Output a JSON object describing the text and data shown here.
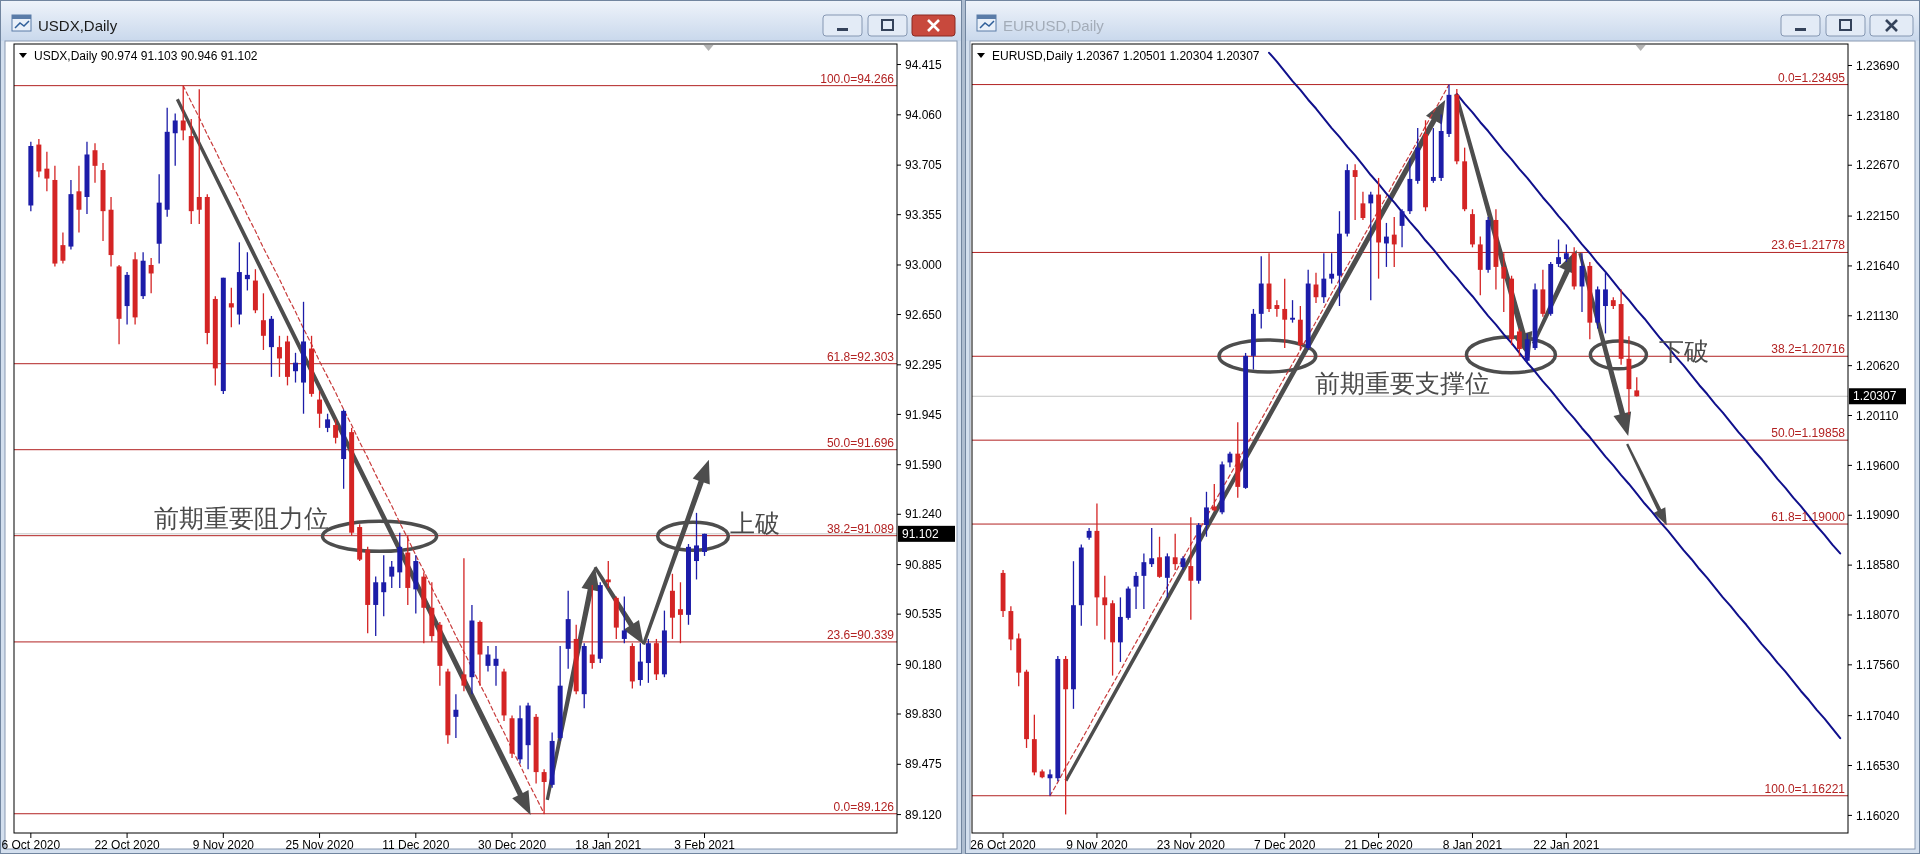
{
  "chart_data": [
    {
      "type": "candlestick",
      "title": "USDX,Daily",
      "subtitle": "USDX,Daily 90.974 91.103 90.946 91.102",
      "categories": [
        "6 Oct 2020",
        null,
        null,
        null,
        null,
        null,
        null,
        null,
        null,
        null,
        null,
        null,
        "22 Oct 2020",
        null,
        null,
        null,
        null,
        null,
        null,
        null,
        null,
        null,
        null,
        null,
        "9 Nov 2020",
        null,
        null,
        null,
        null,
        null,
        null,
        null,
        null,
        null,
        null,
        null,
        "25 Nov 2020",
        null,
        null,
        null,
        null,
        null,
        null,
        null,
        null,
        null,
        null,
        null,
        "11 Dec 2020",
        null,
        null,
        null,
        null,
        null,
        null,
        null,
        null,
        null,
        null,
        null,
        "30 Dec 2020",
        null,
        null,
        null,
        null,
        null,
        null,
        null,
        null,
        null,
        null,
        null,
        "18 Jan 2021",
        null,
        null,
        null,
        null,
        null,
        null,
        null,
        null,
        null,
        null,
        null,
        "3 Feb 2021",
        null,
        null,
        null,
        null,
        null,
        null,
        null,
        null,
        null,
        null,
        null,
        null,
        null,
        null,
        null,
        null,
        null,
        null,
        null,
        null,
        null,
        null,
        null
      ],
      "ohlc": [
        [
          93.42,
          93.87,
          93.38,
          93.84
        ],
        [
          93.85,
          93.89,
          93.62,
          93.66
        ],
        [
          93.68,
          93.8,
          93.52,
          93.61
        ],
        [
          93.6,
          93.7,
          92.99,
          93.01
        ],
        [
          93.14,
          93.23,
          93.01,
          93.03
        ],
        [
          93.13,
          93.6,
          93.11,
          93.5
        ],
        [
          93.52,
          93.7,
          93.23,
          93.39
        ],
        [
          93.48,
          93.87,
          93.36,
          93.78
        ],
        [
          93.81,
          93.86,
          93.58,
          93.7
        ],
        [
          93.67,
          93.72,
          93.17,
          93.38
        ],
        [
          93.39,
          93.48,
          92.99,
          93.07
        ],
        [
          92.99,
          93.0,
          92.44,
          92.62
        ],
        [
          92.71,
          92.95,
          92.58,
          92.93
        ],
        [
          93.04,
          93.09,
          92.58,
          92.63
        ],
        [
          92.78,
          93.09,
          92.76,
          93.03
        ],
        [
          93.0,
          93.05,
          92.8,
          92.94
        ],
        [
          93.15,
          93.64,
          93.01,
          93.44
        ],
        [
          93.39,
          94.11,
          93.34,
          93.94
        ],
        [
          93.93,
          94.07,
          93.7,
          94.02
        ],
        [
          94.02,
          94.266,
          93.88,
          93.95
        ],
        [
          93.91,
          94.03,
          93.29,
          93.38
        ],
        [
          93.48,
          94.24,
          93.29,
          93.39
        ],
        [
          93.48,
          93.5,
          92.44,
          92.52
        ],
        [
          92.76,
          92.78,
          92.15,
          92.27
        ],
        [
          92.11,
          92.91,
          92.09,
          92.91
        ],
        [
          92.73,
          92.84,
          92.56,
          92.7
        ],
        [
          92.65,
          93.16,
          92.58,
          92.95
        ],
        [
          92.9,
          93.09,
          92.82,
          92.93
        ],
        [
          92.89,
          92.97,
          92.66,
          92.68
        ],
        [
          92.61,
          92.8,
          92.4,
          92.5
        ],
        [
          92.42,
          92.64,
          92.21,
          92.62
        ],
        [
          92.42,
          92.5,
          92.21,
          92.34
        ],
        [
          92.46,
          92.5,
          92.15,
          92.21
        ],
        [
          92.25,
          92.38,
          92.17,
          92.31
        ],
        [
          92.17,
          92.74,
          91.95,
          92.46
        ],
        [
          92.41,
          92.5,
          92.07,
          92.09
        ],
        [
          92.05,
          92.11,
          91.85,
          91.95
        ],
        [
          91.85,
          91.95,
          91.82,
          91.91
        ],
        [
          91.87,
          91.91,
          91.74,
          91.78
        ],
        [
          91.63,
          91.98,
          91.42,
          91.97
        ],
        [
          91.82,
          91.85,
          91.09,
          91.11
        ],
        [
          91.15,
          91.17,
          90.91,
          90.92
        ],
        [
          90.99,
          91.01,
          90.4,
          90.6
        ],
        [
          90.6,
          90.8,
          90.38,
          90.76
        ],
        [
          90.69,
          90.95,
          90.52,
          90.76
        ],
        [
          90.8,
          90.91,
          90.72,
          90.87
        ],
        [
          90.83,
          91.11,
          90.72,
          91.01
        ],
        [
          90.97,
          91.09,
          90.6,
          90.72
        ],
        [
          90.71,
          90.95,
          90.54,
          90.91
        ],
        [
          90.8,
          90.83,
          90.33,
          90.58
        ],
        [
          90.58,
          90.76,
          90.34,
          90.38
        ],
        [
          90.46,
          90.48,
          90.03,
          90.17
        ],
        [
          90.13,
          90.15,
          89.62,
          89.68
        ],
        [
          89.81,
          89.97,
          89.66,
          89.86
        ],
        [
          90.11,
          90.93,
          89.99,
          90.03
        ],
        [
          90.09,
          90.6,
          89.97,
          90.49
        ],
        [
          90.48,
          90.49,
          90.03,
          90.25
        ],
        [
          90.17,
          90.31,
          90.13,
          90.25
        ],
        [
          90.17,
          90.31,
          90.03,
          90.22
        ],
        [
          90.13,
          90.15,
          89.78,
          89.82
        ],
        [
          89.8,
          89.82,
          89.52,
          89.55
        ],
        [
          89.51,
          89.89,
          89.48,
          89.8
        ],
        [
          89.61,
          89.91,
          89.44,
          89.89
        ],
        [
          89.81,
          89.83,
          89.34,
          89.42
        ],
        [
          89.42,
          89.44,
          89.126,
          89.35
        ],
        [
          89.33,
          89.7,
          89.31,
          89.64
        ],
        [
          89.66,
          90.31,
          89.64,
          90.03
        ],
        [
          90.29,
          90.7,
          90.15,
          90.5
        ],
        [
          90.36,
          90.46,
          89.97,
          89.99
        ],
        [
          89.97,
          90.33,
          89.87,
          90.31
        ],
        [
          90.25,
          90.74,
          90.15,
          90.19
        ],
        [
          90.22,
          90.76,
          90.19,
          90.74
        ],
        [
          90.78,
          90.91,
          90.72,
          90.76
        ],
        [
          90.65,
          90.66,
          90.36,
          90.44
        ],
        [
          90.36,
          90.66,
          90.33,
          90.42
        ],
        [
          90.31,
          90.33,
          90.01,
          90.06
        ],
        [
          90.07,
          90.33,
          90.03,
          90.2
        ],
        [
          90.19,
          90.36,
          90.05,
          90.33
        ],
        [
          90.33,
          90.36,
          90.07,
          90.11
        ],
        [
          90.11,
          90.56,
          90.09,
          90.42
        ],
        [
          90.7,
          90.82,
          90.36,
          90.51
        ],
        [
          90.57,
          90.76,
          90.33,
          90.53
        ],
        [
          90.53,
          91.03,
          90.46,
          91.01
        ],
        [
          90.91,
          91.25,
          90.78,
          91.02
        ],
        [
          90.974,
          91.103,
          90.946,
          91.102
        ],
        null,
        null,
        null,
        null,
        null,
        null,
        null,
        null,
        null,
        null,
        null,
        null,
        null,
        null,
        null,
        null,
        null,
        null,
        null,
        null,
        null,
        null,
        null
      ],
      "colors": [
        "#1c1ca8",
        "#d42424",
        "#d42424",
        "#d42424",
        "#d42424",
        "#1c1ca8",
        "#d42424",
        "#1c1ca8",
        "#d42424",
        "#d42424",
        "#d42424",
        "#d42424",
        "#1c1ca8",
        "#d42424",
        "#1c1ca8",
        "#d42424",
        "#1c1ca8",
        "#1c1ca8",
        "#1c1ca8",
        "#d42424",
        "#d42424",
        "#d42424",
        "#d42424",
        "#d42424",
        "#1c1ca8",
        "#d42424",
        "#1c1ca8",
        "#1c1ca8",
        "#d42424",
        "#d42424",
        "#1c1ca8",
        "#d42424",
        "#d42424",
        "#1c1ca8",
        "#1c1ca8",
        "#d42424",
        "#d42424",
        "#1c1ca8",
        "#d42424",
        "#1c1ca8",
        "#d42424",
        "#d42424",
        "#d42424",
        "#1c1ca8",
        "#1c1ca8",
        "#1c1ca8",
        "#1c1ca8",
        "#d42424",
        "#1c1ca8",
        "#d42424",
        "#d42424",
        "#d42424",
        "#d42424",
        "#1c1ca8",
        "#d42424",
        "#1c1ca8",
        "#d42424",
        "#1c1ca8",
        "#1c1ca8",
        "#d42424",
        "#d42424",
        "#1c1ca8",
        "#1c1ca8",
        "#d42424",
        "#d42424",
        "#1c1ca8",
        "#1c1ca8",
        "#1c1ca8",
        "#d42424",
        "#1c1ca8",
        "#d42424",
        "#1c1ca8",
        "#d42424",
        "#d42424",
        "#1c1ca8",
        "#d42424",
        "#1c1ca8",
        "#1c1ca8",
        "#d42424",
        "#1c1ca8",
        "#d42424",
        "#d42424",
        "#1c1ca8",
        "#1c1ca8",
        "#1c1ca8",
        null,
        null,
        null,
        null,
        null,
        null,
        null,
        null,
        null,
        null,
        null,
        null,
        null,
        null,
        null,
        null,
        null,
        null,
        null,
        null,
        null,
        null,
        null
      ],
      "series": [
        {
          "type": "line",
          "color": "#c83c3c",
          "line_style": "dashed",
          "values": [
            null,
            null,
            null,
            null,
            null,
            null,
            null,
            null,
            null,
            null,
            null,
            null,
            null,
            null,
            null,
            null,
            null,
            null,
            null,
            94.266,
            94.15,
            94.04,
            93.92,
            93.81,
            93.69,
            93.58,
            93.47,
            93.35,
            93.24,
            93.12,
            93.01,
            92.9,
            92.78,
            92.67,
            92.55,
            92.44,
            92.32,
            92.21,
            92.1,
            91.98,
            91.87,
            91.75,
            91.64,
            91.52,
            91.41,
            91.3,
            91.18,
            91.07,
            90.95,
            90.84,
            90.72,
            90.61,
            90.5,
            90.38,
            90.27,
            null,
            90.04,
            89.93,
            89.81,
            89.7,
            89.58,
            89.47,
            89.35,
            89.24,
            89.126,
            null,
            null,
            null,
            null,
            null,
            null,
            null,
            null,
            null,
            null,
            null,
            null,
            null,
            null,
            null,
            null,
            null,
            null,
            null,
            null,
            null,
            null,
            null,
            null,
            null,
            null,
            null,
            null,
            null,
            null,
            null,
            null,
            null,
            null,
            null,
            null,
            null,
            null,
            null,
            null,
            null,
            null,
            null
          ]
        }
      ],
      "ylim": [
        88.99,
        94.56
      ],
      "yticks": [
        94.415,
        {
          "value": 94.06,
          "label": "94.060"
        },
        93.705,
        93.355,
        {
          "value": 93,
          "label": "93.000"
        },
        {
          "value": 92.65,
          "label": "92.650"
        },
        92.295,
        91.945,
        {
          "value": 91.59,
          "label": "91.590"
        },
        {
          "value": 91.24,
          "label": "91.240"
        },
        90.885,
        90.535,
        {
          "value": 90.18,
          "label": "90.180"
        },
        {
          "value": 89.83,
          "label": "89.830"
        },
        89.475,
        {
          "value": 89.12,
          "label": "89.120"
        }
      ],
      "ref_lines": [
        {
          "axis": "y",
          "value": 94.266,
          "label": "100.0=94.266",
          "color": "#b22222"
        },
        {
          "axis": "y",
          "value": 92.303,
          "label": "61.8=92.303",
          "color": "#b22222"
        },
        {
          "axis": "y",
          "value": 91.696,
          "label": "50.0=91.696",
          "color": "#b22222"
        },
        {
          "axis": "y",
          "value": 91.089,
          "label": "38.2=91.089",
          "color": "#b22222"
        },
        {
          "axis": "y",
          "value": 90.339,
          "label": "23.6=90.339",
          "color": "#b22222"
        },
        {
          "axis": "y",
          "value": 89.126,
          "label": "0.0=89.126",
          "color": "#b22222"
        },
        {
          "axis": "y",
          "value": 91.102,
          "label": "91.102",
          "color": "#c4c4c4"
        }
      ],
      "annotations": [
        {
          "text": "前期重要阻力位",
          "y": 91.089
        },
        "上破"
      ]
    },
    {
      "type": "candlestick",
      "title": "EURUSD,Daily",
      "subtitle": "EURUSD,Daily 1.20367 1.20501 1.20304 1.20307",
      "categories": [
        "26 Oct 2020",
        null,
        null,
        null,
        null,
        null,
        null,
        null,
        null,
        null,
        null,
        null,
        "9 Nov 2020",
        null,
        null,
        null,
        null,
        null,
        null,
        null,
        null,
        null,
        null,
        null,
        "23 Nov 2020",
        null,
        null,
        null,
        null,
        null,
        null,
        null,
        null,
        null,
        null,
        null,
        "7 Dec 2020",
        null,
        null,
        null,
        null,
        null,
        null,
        null,
        null,
        null,
        null,
        null,
        "21 Dec 2020",
        null,
        null,
        null,
        null,
        null,
        null,
        null,
        null,
        null,
        null,
        null,
        "8 Jan 2021",
        null,
        null,
        null,
        null,
        null,
        null,
        null,
        null,
        null,
        null,
        null,
        "22 Jan 2021",
        null,
        null,
        null,
        null,
        null,
        null,
        null,
        null,
        null,
        null,
        null,
        null,
        null,
        null,
        null,
        null,
        null,
        null,
        null,
        null,
        null,
        null,
        null,
        null,
        null,
        null,
        null,
        null,
        null,
        null,
        null,
        null,
        null,
        null,
        null
      ],
      "ohlc": [
        [
          1.185,
          1.1853,
          1.1805,
          1.1811
        ],
        [
          1.1811,
          1.1816,
          1.1771,
          1.1782
        ],
        [
          1.1783,
          1.1788,
          1.1734,
          1.1748
        ],
        [
          1.1749,
          1.1751,
          1.1671,
          1.168
        ],
        [
          1.168,
          1.1705,
          1.1643,
          1.1646
        ],
        [
          1.1647,
          1.1649,
          1.164,
          1.1641
        ],
        [
          1.164,
          1.1649,
          1.16221,
          1.1644
        ],
        [
          1.164,
          1.1765,
          1.1637,
          1.1762
        ],
        [
          1.1762,
          1.1765,
          1.1603,
          1.1731
        ],
        [
          1.1731,
          1.1862,
          1.1711,
          1.1817
        ],
        [
          1.1817,
          1.1879,
          1.1796,
          1.1876
        ],
        [
          1.1886,
          1.1896,
          1.1884,
          1.1893
        ],
        [
          1.1893,
          1.1921,
          1.1796,
          1.1825
        ],
        [
          1.1825,
          1.1847,
          1.1782,
          1.1817
        ],
        [
          1.1819,
          1.1822,
          1.1745,
          1.1779
        ],
        [
          1.1779,
          1.1825,
          1.1759,
          1.1805
        ],
        [
          1.1804,
          1.1836,
          1.1802,
          1.1834
        ],
        [
          1.1836,
          1.1851,
          1.1813,
          1.1847
        ],
        [
          1.1847,
          1.187,
          1.1813,
          1.1861
        ],
        [
          1.1859,
          1.1896,
          1.1856,
          1.1865
        ],
        [
          1.1866,
          1.1887,
          1.1845,
          1.1846
        ],
        [
          1.1845,
          1.187,
          1.1825,
          1.1867
        ],
        [
          1.1866,
          1.189,
          1.1853,
          1.1859
        ],
        [
          1.1856,
          1.1867,
          1.1853,
          1.1865
        ],
        [
          1.1857,
          1.1907,
          1.1802,
          1.1842
        ],
        [
          1.1842,
          1.1901,
          1.1839,
          1.1899
        ],
        [
          1.1899,
          1.1933,
          1.1887,
          1.1917
        ],
        [
          1.1918,
          1.1941,
          1.1913,
          1.1914
        ],
        [
          1.1912,
          1.1964,
          1.191,
          1.1961
        ],
        [
          1.1963,
          1.1974,
          1.1958,
          1.1972
        ],
        [
          1.1972,
          1.2004,
          1.1927,
          1.1938
        ],
        [
          1.1937,
          1.2075,
          1.1936,
          1.2072
        ],
        [
          1.2072,
          1.212,
          1.2058,
          1.2115
        ],
        [
          1.2115,
          1.2174,
          1.21,
          1.2146
        ],
        [
          1.2146,
          1.2177,
          1.2117,
          1.212
        ],
        [
          1.2124,
          1.2129,
          1.2112,
          1.212
        ],
        [
          1.212,
          1.2151,
          1.208,
          1.2109
        ],
        [
          1.2109,
          1.2129,
          1.2106,
          1.2111
        ],
        [
          1.2109,
          1.2123,
          1.2078,
          1.2083
        ],
        [
          1.208,
          1.216,
          1.2078,
          1.2146
        ],
        [
          1.2145,
          1.2157,
          1.2126,
          1.2132
        ],
        [
          1.2132,
          1.2177,
          1.2126,
          1.2151
        ],
        [
          1.2151,
          1.2177,
          1.2146,
          1.2156
        ],
        [
          1.2154,
          1.222,
          1.2123,
          1.2197
        ],
        [
          1.2197,
          1.2268,
          1.2194,
          1.2262
        ],
        [
          1.2262,
          1.2268,
          1.2211,
          1.2255
        ],
        [
          1.2228,
          1.224,
          1.2211,
          1.2213
        ],
        [
          1.2228,
          1.224,
          1.2129,
          1.2237
        ],
        [
          1.2237,
          1.2254,
          1.2151,
          1.2188
        ],
        [
          1.2187,
          1.2208,
          1.2163,
          1.2194
        ],
        [
          1.2196,
          1.2214,
          1.2163,
          1.2186
        ],
        [
          1.2205,
          1.2222,
          1.2183,
          1.222
        ],
        [
          1.222,
          1.2274,
          1.2217,
          1.2253
        ],
        [
          1.2251,
          1.2305,
          1.2248,
          1.2285
        ],
        [
          1.2299,
          1.2313,
          1.222,
          1.2224
        ],
        [
          1.2251,
          1.2305,
          1.2249,
          1.2255
        ],
        [
          1.2254,
          1.2319,
          1.2251,
          1.2302
        ],
        [
          1.2299,
          1.23495,
          1.2296,
          1.2339
        ],
        [
          1.2339,
          1.2345,
          1.2268,
          1.2271
        ],
        [
          1.2271,
          1.2285,
          1.222,
          1.2222
        ],
        [
          1.2217,
          1.2222,
          1.2183,
          1.2186
        ],
        [
          1.2186,
          1.2194,
          1.2134,
          1.216
        ],
        [
          1.216,
          1.2214,
          1.2157,
          1.2211
        ],
        [
          1.2211,
          1.2222,
          1.214,
          1.2163
        ],
        [
          1.2163,
          1.2177,
          1.2117,
          1.2151
        ],
        [
          1.2151,
          1.2154,
          1.2083,
          1.2089
        ],
        [
          1.2097,
          1.21,
          1.2072,
          1.2079
        ],
        [
          1.2067,
          1.2095,
          1.2066,
          1.2089
        ],
        [
          1.208,
          1.2146,
          1.2078,
          1.214
        ],
        [
          1.214,
          1.216,
          1.2112,
          1.2115
        ],
        [
          1.2115,
          1.2168,
          1.2113,
          1.2166
        ],
        [
          1.2166,
          1.2191,
          1.2163,
          1.2173
        ],
        [
          1.2171,
          1.2186,
          1.2168,
          1.2177
        ],
        [
          1.2177,
          1.2183,
          1.214,
          1.2143
        ],
        [
          1.2143,
          1.2177,
          1.2117,
          1.2164
        ],
        [
          1.2164,
          1.2168,
          1.2089,
          1.2106
        ],
        [
          1.2106,
          1.2143,
          1.21,
          1.214
        ],
        [
          1.2123,
          1.2157,
          1.2095,
          1.214
        ],
        [
          1.2129,
          1.2132,
          1.212,
          1.2123
        ],
        [
          1.2125,
          1.214,
          1.2063,
          1.2069
        ],
        [
          1.2069,
          1.2092,
          1.2012,
          1.2038
        ],
        [
          1.20367,
          1.20501,
          1.20304,
          1.20307
        ],
        null,
        null,
        null,
        null,
        null,
        null,
        null,
        null,
        null,
        null,
        null,
        null,
        null,
        null,
        null,
        null,
        null,
        null,
        null,
        null,
        null,
        null,
        null,
        null,
        null,
        null
      ],
      "colors": [
        "#d42424",
        "#d42424",
        "#d42424",
        "#d42424",
        "#d42424",
        "#d42424",
        "#1c1ca8",
        "#1c1ca8",
        "#d42424",
        "#1c1ca8",
        "#1c1ca8",
        "#1c1ca8",
        "#d42424",
        "#d42424",
        "#d42424",
        "#1c1ca8",
        "#1c1ca8",
        "#1c1ca8",
        "#1c1ca8",
        "#1c1ca8",
        "#d42424",
        "#1c1ca8",
        "#d42424",
        "#1c1ca8",
        "#d42424",
        "#1c1ca8",
        "#1c1ca8",
        "#d42424",
        "#1c1ca8",
        "#1c1ca8",
        "#d42424",
        "#1c1ca8",
        "#1c1ca8",
        "#1c1ca8",
        "#d42424",
        "#d42424",
        "#d42424",
        "#1c1ca8",
        "#d42424",
        "#1c1ca8",
        "#d42424",
        "#1c1ca8",
        "#1c1ca8",
        "#1c1ca8",
        "#1c1ca8",
        "#d42424",
        "#d42424",
        "#1c1ca8",
        "#d42424",
        "#1c1ca8",
        "#d42424",
        "#1c1ca8",
        "#1c1ca8",
        "#1c1ca8",
        "#d42424",
        "#1c1ca8",
        "#1c1ca8",
        "#1c1ca8",
        "#d42424",
        "#d42424",
        "#d42424",
        "#d42424",
        "#1c1ca8",
        "#d42424",
        "#d42424",
        "#d42424",
        "#d42424",
        "#1c1ca8",
        "#1c1ca8",
        "#d42424",
        "#1c1ca8",
        "#1c1ca8",
        "#1c1ca8",
        "#d42424",
        "#1c1ca8",
        "#d42424",
        "#1c1ca8",
        "#1c1ca8",
        "#d42424",
        "#d42424",
        "#d42424",
        "#d42424",
        null,
        null,
        null,
        null,
        null,
        null,
        null,
        null,
        null,
        null,
        null,
        null,
        null,
        null,
        null,
        null,
        null,
        null,
        null,
        null,
        null,
        null,
        null,
        null,
        null,
        null
      ],
      "series": [
        {
          "type": "line",
          "color": "#c83c3c",
          "line_style": "dashed",
          "values": [
            null,
            null,
            null,
            null,
            null,
            null,
            1.16221,
            1.1636,
            1.1651,
            1.1665,
            1.1679,
            1.1693,
            1.1708,
            1.1722,
            1.1736,
            1.175,
            1.1765,
            1.1779,
            1.1793,
            1.1808,
            1.1822,
            1.1836,
            1.185,
            1.1865,
            1.1879,
            1.1893,
            1.1907,
            1.1922,
            1.1936,
            1.195,
            1.1964,
            null,
            1.1993,
            1.2007,
            1.2021,
            1.2036,
            1.205,
            1.2064,
            1.2078,
            null,
            1.2107,
            1.2121,
            1.2136,
            1.215,
            1.2164,
            1.2178,
            1.2193,
            1.2207,
            1.2221,
            1.2235,
            1.225,
            1.2264,
            1.2278,
            1.2292,
            1.2307,
            1.2321,
            1.2335,
            1.23495,
            null,
            null,
            null,
            null,
            null,
            null,
            null,
            null,
            null,
            null,
            null,
            null,
            null,
            null,
            null,
            null,
            null,
            null,
            null,
            null,
            null,
            null,
            null,
            null,
            null,
            null,
            null,
            null,
            null,
            null,
            null,
            null,
            null,
            null,
            null,
            null,
            null,
            null,
            null,
            null,
            null,
            null,
            null,
            null,
            null,
            null,
            null,
            null,
            null,
            null
          ]
        },
        {
          "type": "line",
          "color": "#10108c",
          "values": [
            null,
            null,
            null,
            null,
            null,
            null,
            null,
            null,
            null,
            null,
            null,
            null,
            null,
            null,
            null,
            null,
            null,
            null,
            null,
            null,
            null,
            null,
            null,
            null,
            null,
            null,
            null,
            null,
            null,
            null,
            null,
            null,
            null,
            null,
            1.2382,
            1.2373,
            1.2363,
            1.2353,
            1.2344,
            1.2334,
            1.2325,
            1.2315,
            1.2305,
            1.2296,
            1.2286,
            1.2277,
            1.2267,
            1.2257,
            1.2248,
            1.2238,
            1.2229,
            1.2219,
            1.2209,
            1.22,
            1.219,
            1.2181,
            1.2171,
            1.2161,
            1.2152,
            1.2142,
            1.2133,
            1.2123,
            1.2113,
            1.2104,
            1.2094,
            1.2085,
            1.2075,
            1.2065,
            1.2056,
            1.2046,
            1.2037,
            1.2027,
            1.2017,
            1.2008,
            1.1998,
            1.1989,
            1.1979,
            1.1969,
            1.196,
            1.195,
            1.1941,
            1.1931,
            1.1921,
            1.1912,
            1.1902,
            1.1893,
            1.1883,
            1.1873,
            1.1864,
            1.1854,
            1.1845,
            1.1835,
            1.1825,
            1.1816,
            1.1806,
            1.1797,
            1.1787,
            1.1777,
            1.1768,
            1.1758,
            1.1749,
            1.1739,
            1.1729,
            1.172,
            1.171,
            1.1701,
            1.1691,
            1.1681
          ]
        },
        {
          "type": "line",
          "color": "#10108c",
          "values": [
            null,
            null,
            null,
            null,
            null,
            null,
            null,
            null,
            null,
            null,
            null,
            null,
            null,
            null,
            null,
            null,
            null,
            null,
            null,
            null,
            null,
            null,
            null,
            null,
            null,
            null,
            null,
            null,
            null,
            null,
            null,
            null,
            null,
            null,
            null,
            null,
            null,
            null,
            null,
            null,
            null,
            null,
            null,
            null,
            null,
            null,
            null,
            null,
            null,
            null,
            null,
            null,
            null,
            null,
            null,
            null,
            null,
            null,
            1.234,
            1.233,
            1.2321,
            1.2311,
            1.2302,
            1.2292,
            1.2282,
            1.2273,
            1.2263,
            1.2254,
            1.2244,
            1.2234,
            1.2225,
            1.2215,
            1.2206,
            1.2196,
            1.2186,
            1.2177,
            1.2167,
            1.2158,
            1.2148,
            1.2138,
            1.2129,
            1.2119,
            1.211,
            1.21,
            1.209,
            1.2081,
            1.2071,
            1.2062,
            1.2052,
            1.2042,
            1.2033,
            1.2023,
            1.2014,
            1.2004,
            1.1994,
            1.1985,
            1.1975,
            1.1966,
            1.1956,
            1.1946,
            1.1937,
            1.1927,
            1.1918,
            1.1908,
            1.1898,
            1.1889,
            1.1879,
            1.187
          ]
        }
      ],
      "ylim": [
        1.1584,
        1.2391
      ],
      "yticks": [
        {
          "value": 1.2369,
          "label": "1.23690"
        },
        {
          "value": 1.2318,
          "label": "1.23180"
        },
        {
          "value": 1.2267,
          "label": "1.22670"
        },
        {
          "value": 1.2215,
          "label": "1.22150"
        },
        {
          "value": 1.2164,
          "label": "1.21640"
        },
        {
          "value": 1.2113,
          "label": "1.21130"
        },
        {
          "value": 1.2062,
          "label": "1.20620"
        },
        {
          "value": 1.2011,
          "label": "1.20110"
        },
        {
          "value": 1.196,
          "label": "1.19600"
        },
        {
          "value": 1.1909,
          "label": "1.19090"
        },
        {
          "value": 1.1858,
          "label": "1.18580"
        },
        {
          "value": 1.1807,
          "label": "1.18070"
        },
        {
          "value": 1.1756,
          "label": "1.17560"
        },
        {
          "value": 1.1704,
          "label": "1.17040"
        },
        {
          "value": 1.1653,
          "label": "1.16530"
        },
        {
          "value": 1.1602,
          "label": "1.16020"
        }
      ],
      "ref_lines": [
        {
          "axis": "y",
          "value": 1.23495,
          "label": "0.0=1.23495",
          "color": "#b22222"
        },
        {
          "axis": "y",
          "value": 1.21778,
          "label": "23.6=1.21778",
          "color": "#b22222"
        },
        {
          "axis": "y",
          "value": 1.20716,
          "label": "38.2=1.20716",
          "color": "#b22222"
        },
        {
          "axis": "y",
          "value": 1.19858,
          "label": "50.0=1.19858",
          "color": "#b22222"
        },
        {
          "axis": "y",
          "value": 1.19,
          "label": "61.8=1.19000",
          "color": "#b22222"
        },
        {
          "axis": "y",
          "value": 1.16221,
          "label": "100.0=1.16221",
          "color": "#b22222"
        },
        {
          "axis": "y",
          "value": 1.20307,
          "label": "1.20307",
          "color": "#c4c4c4"
        }
      ],
      "annotations": [
        "前期重要支撑位",
        "下破"
      ]
    }
  ]
}
